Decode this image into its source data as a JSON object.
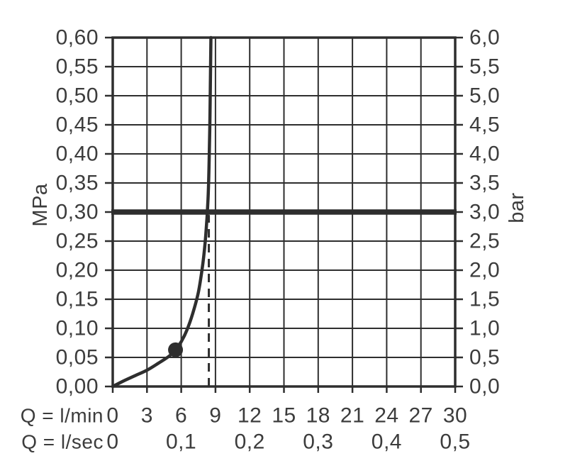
{
  "colors": {
    "stroke": "#2e2e2e",
    "text": "#3c3c3c",
    "background": "#ffffff"
  },
  "chart_data": {
    "type": "line",
    "title": "",
    "grid": true,
    "x_range_lmin": [
      0,
      30
    ],
    "y_range_mpa": [
      0,
      0.6
    ],
    "x_axis_row1": {
      "prefix_label": "Q = l/min",
      "ticks": [
        {
          "value": 0,
          "label": "0"
        },
        {
          "value": 3,
          "label": "3"
        },
        {
          "value": 6,
          "label": "6"
        },
        {
          "value": 9,
          "label": "9"
        },
        {
          "value": 12,
          "label": "12"
        },
        {
          "value": 15,
          "label": "15"
        },
        {
          "value": 18,
          "label": "18"
        },
        {
          "value": 21,
          "label": "21"
        },
        {
          "value": 24,
          "label": "24"
        },
        {
          "value": 27,
          "label": "27"
        },
        {
          "value": 30,
          "label": "30"
        }
      ]
    },
    "x_axis_row2": {
      "prefix_label": "Q = l/sec",
      "ticks": [
        {
          "value": 0,
          "label": "0"
        },
        {
          "value": 6,
          "label": "0,1"
        },
        {
          "value": 12,
          "label": "0,2"
        },
        {
          "value": 18,
          "label": "0,3"
        },
        {
          "value": 24,
          "label": "0,4"
        },
        {
          "value": 30,
          "label": "0,5"
        }
      ]
    },
    "y_axis_left": {
      "unit": "MPa",
      "ticks": [
        {
          "value": 0.6,
          "label": "0,60"
        },
        {
          "value": 0.55,
          "label": "0,55"
        },
        {
          "value": 0.5,
          "label": "0,50"
        },
        {
          "value": 0.45,
          "label": "0,45"
        },
        {
          "value": 0.4,
          "label": "0,40"
        },
        {
          "value": 0.35,
          "label": "0,35"
        },
        {
          "value": 0.3,
          "label": "0,30"
        },
        {
          "value": 0.25,
          "label": "0,25"
        },
        {
          "value": 0.2,
          "label": "0,20"
        },
        {
          "value": 0.15,
          "label": "0,15"
        },
        {
          "value": 0.1,
          "label": "0,10"
        },
        {
          "value": 0.05,
          "label": "0,05"
        },
        {
          "value": 0.0,
          "label": "0,00"
        }
      ]
    },
    "y_axis_right": {
      "unit": "bar",
      "ticks": [
        {
          "value": 0.6,
          "label": "6,0"
        },
        {
          "value": 0.55,
          "label": "5,5"
        },
        {
          "value": 0.5,
          "label": "5,0"
        },
        {
          "value": 0.45,
          "label": "4,5"
        },
        {
          "value": 0.4,
          "label": "4,0"
        },
        {
          "value": 0.35,
          "label": "3,5"
        },
        {
          "value": 0.3,
          "label": "3,0"
        },
        {
          "value": 0.25,
          "label": "2,5"
        },
        {
          "value": 0.2,
          "label": "2,0"
        },
        {
          "value": 0.15,
          "label": "1,5"
        },
        {
          "value": 0.1,
          "label": "1,0"
        },
        {
          "value": 0.05,
          "label": "0,5"
        },
        {
          "value": 0.0,
          "label": "0,0"
        }
      ]
    },
    "reference_line": {
      "mpa": 0.3,
      "bar": 3.0
    },
    "dashed_guide": {
      "lmin": 8.42,
      "from_mpa": 0,
      "to_mpa": 0.295
    },
    "operating_point": {
      "lmin": 5.5,
      "mpa": 0.063
    },
    "curve_points_lmin_mpa": [
      [
        0,
        0
      ],
      [
        1,
        0.01
      ],
      [
        2,
        0.019
      ],
      [
        3,
        0.028
      ],
      [
        4,
        0.04
      ],
      [
        5,
        0.053
      ],
      [
        5.5,
        0.063
      ],
      [
        6,
        0.077
      ],
      [
        6.5,
        0.097
      ],
      [
        7,
        0.125
      ],
      [
        7.5,
        0.162
      ],
      [
        7.9,
        0.212
      ],
      [
        8.15,
        0.26
      ],
      [
        8.35,
        0.322
      ],
      [
        8.45,
        0.39
      ],
      [
        8.52,
        0.47
      ],
      [
        8.57,
        0.55
      ],
      [
        8.6,
        0.6
      ]
    ]
  }
}
